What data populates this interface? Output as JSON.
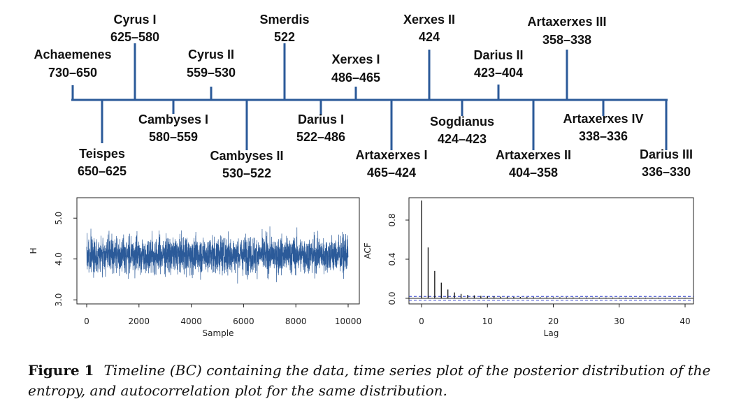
{
  "chart_data": [
    {
      "type": "timeline",
      "unit": "BC",
      "colors": {
        "line": "#2b5a99"
      },
      "events": [
        {
          "name": "Achaemenes",
          "period": "730–650",
          "position": "above"
        },
        {
          "name": "Teispes",
          "period": "650–625",
          "position": "below"
        },
        {
          "name": "Cyrus I",
          "period": "625–580",
          "position": "above"
        },
        {
          "name": "Cambyses I",
          "period": "580–559",
          "position": "below"
        },
        {
          "name": "Cyrus II",
          "period": "559–530",
          "position": "above"
        },
        {
          "name": "Cambyses II",
          "period": "530–522",
          "position": "below"
        },
        {
          "name": "Smerdis",
          "period": "522",
          "position": "above"
        },
        {
          "name": "Darius I",
          "period": "522–486",
          "position": "below"
        },
        {
          "name": "Xerxes I",
          "period": "486–465",
          "position": "above"
        },
        {
          "name": "Artaxerxes I",
          "period": "465–424",
          "position": "below"
        },
        {
          "name": "Xerxes II",
          "period": "424",
          "position": "above"
        },
        {
          "name": "Sogdianus",
          "period": "424–423",
          "position": "below"
        },
        {
          "name": "Darius II",
          "period": "423–404",
          "position": "above"
        },
        {
          "name": "Artaxerxes II",
          "period": "404–358",
          "position": "below"
        },
        {
          "name": "Artaxerxes III",
          "period": "358–338",
          "position": "above"
        },
        {
          "name": "Artaxerxes IV",
          "period": "338–336",
          "position": "below"
        },
        {
          "name": "Darius III",
          "period": "336–330",
          "position": "below"
        }
      ]
    },
    {
      "type": "line",
      "xlabel": "Sample",
      "ylabel": "H",
      "xlim": [
        0,
        10000
      ],
      "ylim": [
        2.9,
        5.5
      ],
      "xticks": [
        "0",
        "2000",
        "4000",
        "6000",
        "8000",
        "10000"
      ],
      "yticks": [
        "3.0",
        "4.0",
        "5.0"
      ],
      "series": [
        {
          "n_samples": 10000,
          "mean": 4.1,
          "typical_range": [
            3.5,
            4.7
          ],
          "min": 2.9,
          "max": 5.4,
          "color": "#2b5a99"
        }
      ]
    },
    {
      "type": "bar",
      "xlabel": "Lag",
      "ylabel": "ACF",
      "xlim": [
        0,
        41
      ],
      "ylim": [
        0,
        1
      ],
      "xticks": [
        "0",
        "10",
        "20",
        "30",
        "40"
      ],
      "yticks": [
        "0.0",
        "0.4",
        "0.8"
      ],
      "lags": [
        0,
        1,
        2,
        3,
        4,
        5,
        6,
        7,
        8,
        9,
        10,
        11,
        12,
        13,
        14,
        15,
        16,
        17,
        18,
        19,
        20,
        21,
        22,
        23,
        24,
        25,
        26,
        27,
        28,
        29,
        30,
        31,
        32,
        33,
        34,
        35,
        36,
        37,
        38,
        39,
        40
      ],
      "values": [
        1.0,
        0.52,
        0.28,
        0.16,
        0.09,
        0.06,
        0.045,
        0.035,
        0.03,
        0.025,
        0.022,
        0.02,
        0.018,
        0.016,
        0.015,
        0.014,
        0.013,
        0.012,
        0.011,
        0.011,
        0.01,
        0.01,
        0.01,
        0.009,
        0.009,
        0.009,
        0.008,
        0.008,
        0.008,
        0.008,
        0.008,
        0.007,
        0.007,
        0.007,
        0.007,
        0.007,
        0.007,
        0.006,
        0.006,
        0.006,
        0.006
      ],
      "confidence_band": [
        -0.02,
        0.02
      ],
      "colors": {
        "bars": "#111111",
        "band": "#3344cc"
      }
    }
  ],
  "caption": {
    "label": "Figure 1",
    "text": "Timeline (BC) containing the data, time series plot of the posterior distribution of the entropy, and autocorrelation plot for the same distribution."
  }
}
